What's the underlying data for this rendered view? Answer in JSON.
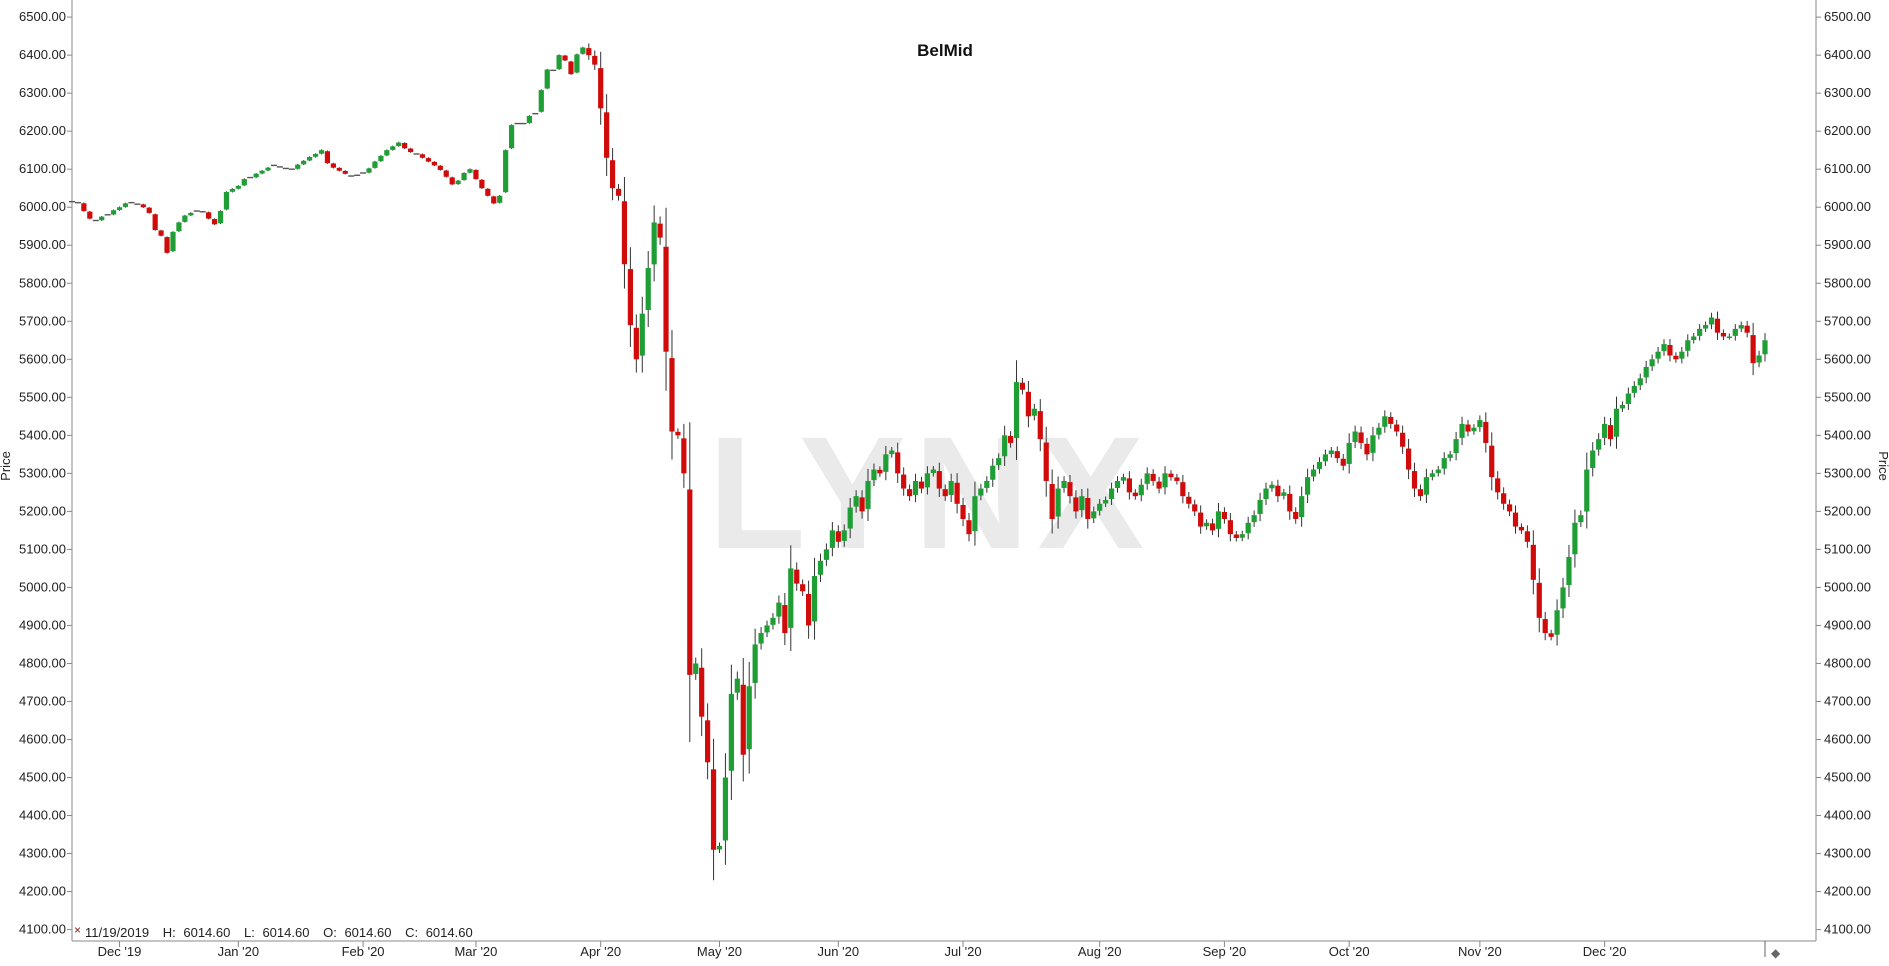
{
  "chart_data": {
    "type": "candlestick",
    "title": "BelMid",
    "ylabel_left": "Price",
    "ylabel_right": "Price",
    "ylim": [
      4070,
      6545
    ],
    "yticks": [
      "6500.00",
      "6400.00",
      "6300.00",
      "6200.00",
      "6100.00",
      "6000.00",
      "5900.00",
      "5800.00",
      "5700.00",
      "5600.00",
      "5500.00",
      "5400.00",
      "5300.00",
      "5200.00",
      "5100.00",
      "5000.00",
      "4900.00",
      "4800.00",
      "4700.00",
      "4600.00",
      "4500.00",
      "4400.00",
      "4300.00",
      "4200.00",
      "4100.00"
    ],
    "xticks": [
      {
        "label": "Dec '19",
        "index": 8
      },
      {
        "label": "Jan '20",
        "index": 28
      },
      {
        "label": "Feb '20",
        "index": 49
      },
      {
        "label": "Mar '20",
        "index": 68
      },
      {
        "label": "Apr '20",
        "index": 89
      },
      {
        "label": "May '20",
        "index": 109
      },
      {
        "label": "Jun '20",
        "index": 129
      },
      {
        "label": "Jul '20",
        "index": 150
      },
      {
        "label": "Aug '20",
        "index": 173
      },
      {
        "label": "Sep '20",
        "index": 194
      },
      {
        "label": "Oct '20",
        "index": 215
      },
      {
        "label": "Nov '20",
        "index": 237
      },
      {
        "label": "Dec '20",
        "index": 258
      }
    ],
    "up_color": "#1e9e35",
    "down_color": "#d10a0a",
    "flat_color": "#555555",
    "watermark": "LYNX",
    "ohlc_readout": {
      "date": "11/19/2019",
      "h_label": "H:",
      "high": "6014.60",
      "l_label": "L:",
      "low": "6014.60",
      "o_label": "O:",
      "open": "6014.60",
      "c_label": "C:",
      "close": "6014.60"
    },
    "closes": [
      6014.6,
      6012,
      5990,
      5970,
      5965,
      5975,
      5980,
      5992,
      6000,
      6010,
      6012,
      6008,
      6000,
      5985,
      5940,
      5925,
      5880,
      5935,
      5960,
      5978,
      5985,
      5990,
      5988,
      5970,
      5955,
      5990,
      6040,
      6048,
      6056,
      6074,
      6078,
      6088,
      6096,
      6104,
      6110,
      6106,
      6102,
      6100,
      6112,
      6122,
      6132,
      6140,
      6150,
      6116,
      6104,
      6096,
      6088,
      6082,
      6084,
      6090,
      6102,
      6120,
      6135,
      6150,
      6160,
      6170,
      6155,
      6145,
      6140,
      6130,
      6120,
      6110,
      6098,
      6080,
      6060,
      6070,
      6090,
      6100,
      6074,
      6050,
      6030,
      6010,
      6030,
      6150,
      6216,
      6220,
      6220,
      6240,
      6246,
      6308,
      6362,
      6360,
      6400,
      6386,
      6350,
      6402,
      6420,
      6400,
      6375,
      6260,
      6130,
      6050,
      6030,
      5850,
      5690,
      5600,
      5720,
      5840,
      5960,
      5920,
      5620,
      5410,
      5400,
      5300,
      4770,
      4800,
      4660,
      4540,
      4310,
      4320,
      4500,
      4720,
      4760,
      4560,
      4740,
      4850,
      4880,
      4900,
      4920,
      4960,
      4880,
      5050,
      5010,
      4990,
      4900,
      5030,
      5070,
      5100,
      5150,
      5120,
      5150,
      5210,
      5240,
      5200,
      5280,
      5310,
      5300,
      5350,
      5360,
      5300,
      5260,
      5240,
      5280,
      5260,
      5300,
      5310,
      5260,
      5240,
      5280,
      5220,
      5180,
      5140,
      5240,
      5260,
      5280,
      5320,
      5340,
      5400,
      5380,
      5540,
      5520,
      5450,
      5470,
      5390,
      5280,
      5180,
      5260,
      5280,
      5240,
      5200,
      5240,
      5180,
      5200,
      5220,
      5230,
      5260,
      5280,
      5290,
      5250,
      5240,
      5270,
      5300,
      5280,
      5260,
      5300,
      5290,
      5280,
      5240,
      5220,
      5200,
      5160,
      5170,
      5150,
      5200,
      5180,
      5140,
      5130,
      5140,
      5170,
      5190,
      5230,
      5260,
      5270,
      5240,
      5250,
      5200,
      5180,
      5240,
      5290,
      5310,
      5330,
      5350,
      5360,
      5340,
      5320,
      5380,
      5410,
      5380,
      5350,
      5400,
      5420,
      5450,
      5430,
      5410,
      5370,
      5310,
      5260,
      5240,
      5290,
      5300,
      5310,
      5340,
      5350,
      5390,
      5430,
      5410,
      5420,
      5440,
      5380,
      5290,
      5250,
      5220,
      5200,
      5160,
      5150,
      5120,
      5020,
      4920,
      4880,
      4870,
      4940,
      5000,
      5080,
      5170,
      5190,
      5310,
      5360,
      5390,
      5430,
      5390,
      5470,
      5480,
      5510,
      5530,
      5550,
      5580,
      5600,
      5620,
      5640,
      5610,
      5600,
      5620,
      5650,
      5660,
      5680,
      5690,
      5710,
      5670,
      5660,
      5660,
      5680,
      5690,
      5670,
      5590,
      5610,
      5650
    ]
  }
}
